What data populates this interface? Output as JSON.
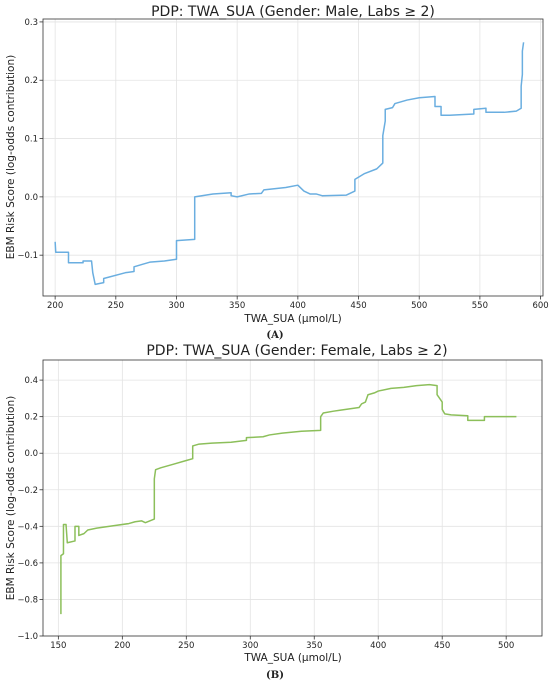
{
  "colors": {
    "male": "#6aaee0",
    "female": "#8cbf5a"
  },
  "chart_data": [
    {
      "type": "line",
      "title": "PDP: TWA_SUA (Gender: Male, Labs ≥ 2)",
      "xlabel": "TWA_SUA (μmol/L)",
      "ylabel": "EBM Risk Score (log-odds contribution)",
      "panel_label": "(A)",
      "xlim": [
        190,
        602
      ],
      "ylim": [
        -0.17,
        0.305
      ],
      "xticks": [
        200,
        250,
        300,
        350,
        400,
        450,
        500,
        550,
        600
      ],
      "yticks": [
        -0.1,
        0.0,
        0.1,
        0.2,
        0.3
      ],
      "ytick_labels": [
        "−0.1",
        "0.0",
        "0.1",
        "0.2",
        "0.3"
      ],
      "grid": true,
      "series": [
        {
          "color": "#6aaee0",
          "points": [
            [
              200,
              -0.077
            ],
            [
              200.5,
              -0.095
            ],
            [
              211,
              -0.095
            ],
            [
              211,
              -0.113
            ],
            [
              223,
              -0.113
            ],
            [
              223,
              -0.11
            ],
            [
              230,
              -0.11
            ],
            [
              231,
              -0.13
            ],
            [
              233,
              -0.15
            ],
            [
              240,
              -0.147
            ],
            [
              240,
              -0.14
            ],
            [
              258,
              -0.13
            ],
            [
              265,
              -0.128
            ],
            [
              265,
              -0.12
            ],
            [
              273,
              -0.115
            ],
            [
              278,
              -0.112
            ],
            [
              290,
              -0.11
            ],
            [
              300,
              -0.107
            ],
            [
              300,
              -0.075
            ],
            [
              315,
              -0.073
            ],
            [
              315,
              0.0
            ],
            [
              330,
              0.005
            ],
            [
              345,
              0.007
            ],
            [
              345,
              0.002
            ],
            [
              350,
              0.0
            ],
            [
              360,
              0.005
            ],
            [
              370,
              0.006
            ],
            [
              372,
              0.012
            ],
            [
              390,
              0.016
            ],
            [
              400,
              0.02
            ],
            [
              405,
              0.01
            ],
            [
              410,
              0.005
            ],
            [
              415,
              0.005
            ],
            [
              420,
              0.002
            ],
            [
              440,
              0.003
            ],
            [
              447,
              0.01
            ],
            [
              447,
              0.03
            ],
            [
              455,
              0.04
            ],
            [
              465,
              0.048
            ],
            [
              470,
              0.058
            ],
            [
              470,
              0.105
            ],
            [
              472,
              0.13
            ],
            [
              472,
              0.15
            ],
            [
              478,
              0.153
            ],
            [
              480,
              0.16
            ],
            [
              490,
              0.166
            ],
            [
              500,
              0.17
            ],
            [
              513,
              0.172
            ],
            [
              513,
              0.155
            ],
            [
              518,
              0.155
            ],
            [
              518,
              0.14
            ],
            [
              525,
              0.14
            ],
            [
              545,
              0.142
            ],
            [
              545,
              0.15
            ],
            [
              555,
              0.152
            ],
            [
              555,
              0.145
            ],
            [
              570,
              0.145
            ],
            [
              580,
              0.147
            ],
            [
              584,
              0.152
            ],
            [
              584,
              0.19
            ],
            [
              585,
              0.21
            ],
            [
              585,
              0.25
            ],
            [
              586,
              0.265
            ]
          ]
        }
      ]
    },
    {
      "type": "line",
      "title": "PDP: TWA_SUA (Gender: Female, Labs ≥ 2)",
      "xlabel": "TWA_SUA (μmol/L)",
      "ylabel": "EBM Risk Score (log-odds contribution)",
      "panel_label": "(B)",
      "xlim": [
        138,
        528
      ],
      "ylim": [
        -1.0,
        0.51
      ],
      "xticks": [
        150,
        200,
        250,
        300,
        350,
        400,
        450,
        500
      ],
      "yticks": [
        -1.0,
        -0.8,
        -0.6,
        -0.4,
        -0.2,
        0.0,
        0.2,
        0.4
      ],
      "ytick_labels": [
        "−1.0",
        "−0.8",
        "−0.6",
        "−0.4",
        "−0.2",
        "0.0",
        "0.2",
        "0.4"
      ],
      "grid": true,
      "series": [
        {
          "color": "#8cbf5a",
          "points": [
            [
              152,
              -0.88
            ],
            [
              152,
              -0.56
            ],
            [
              154,
              -0.55
            ],
            [
              154,
              -0.39
            ],
            [
              156,
              -0.39
            ],
            [
              157,
              -0.49
            ],
            [
              163,
              -0.48
            ],
            [
              163,
              -0.4
            ],
            [
              166,
              -0.4
            ],
            [
              166,
              -0.45
            ],
            [
              170,
              -0.44
            ],
            [
              173,
              -0.42
            ],
            [
              180,
              -0.41
            ],
            [
              195,
              -0.395
            ],
            [
              205,
              -0.385
            ],
            [
              210,
              -0.375
            ],
            [
              215,
              -0.37
            ],
            [
              218,
              -0.38
            ],
            [
              225,
              -0.36
            ],
            [
              225,
              -0.14
            ],
            [
              226,
              -0.09
            ],
            [
              230,
              -0.08
            ],
            [
              240,
              -0.06
            ],
            [
              250,
              -0.04
            ],
            [
              255,
              -0.03
            ],
            [
              255,
              0.04
            ],
            [
              260,
              0.05
            ],
            [
              270,
              0.055
            ],
            [
              285,
              0.06
            ],
            [
              297,
              0.07
            ],
            [
              297,
              0.085
            ],
            [
              310,
              0.09
            ],
            [
              315,
              0.1
            ],
            [
              325,
              0.11
            ],
            [
              340,
              0.12
            ],
            [
              355,
              0.125
            ],
            [
              355,
              0.2
            ],
            [
              357,
              0.22
            ],
            [
              365,
              0.23
            ],
            [
              370,
              0.235
            ],
            [
              385,
              0.25
            ],
            [
              387,
              0.27
            ],
            [
              390,
              0.28
            ],
            [
              392,
              0.32
            ],
            [
              397,
              0.33
            ],
            [
              400,
              0.34
            ],
            [
              410,
              0.355
            ],
            [
              420,
              0.36
            ],
            [
              430,
              0.37
            ],
            [
              440,
              0.375
            ],
            [
              446,
              0.37
            ],
            [
              446,
              0.32
            ],
            [
              450,
              0.28
            ],
            [
              450,
              0.24
            ],
            [
              452,
              0.215
            ],
            [
              457,
              0.21
            ],
            [
              470,
              0.205
            ],
            [
              470,
              0.18
            ],
            [
              483,
              0.18
            ],
            [
              483,
              0.2
            ],
            [
              495,
              0.2
            ],
            [
              508,
              0.2
            ]
          ]
        }
      ]
    }
  ]
}
